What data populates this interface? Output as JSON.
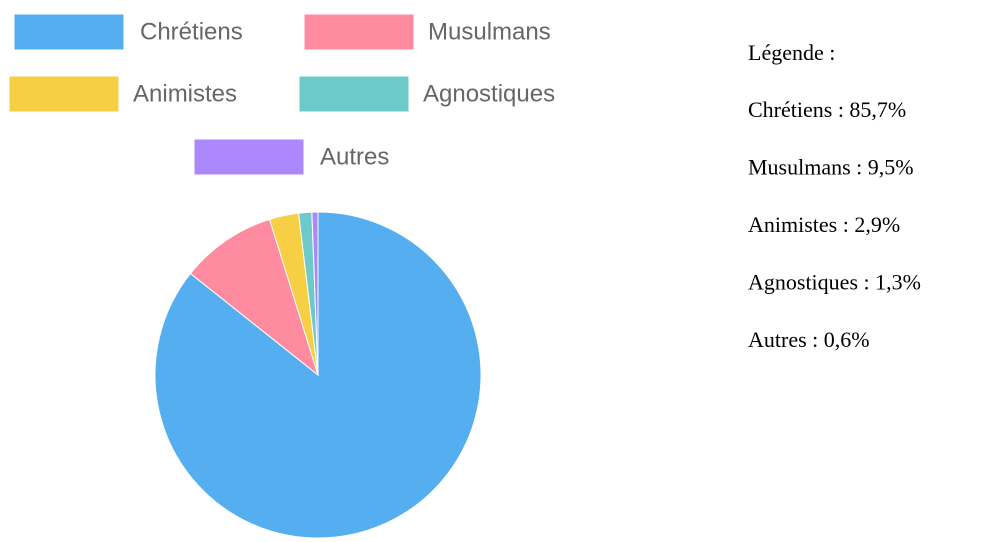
{
  "chart_data": {
    "type": "pie",
    "categories": [
      "Chrétiens",
      "Musulmans",
      "Animistes",
      "Agnostiques",
      "Autres"
    ],
    "values": [
      85.7,
      9.5,
      2.9,
      1.3,
      0.6
    ],
    "colors": [
      "#55aef0",
      "#ff8ba1",
      "#f7cf45",
      "#6ccbca",
      "#ac88fc"
    ],
    "legend_title": "Légende :",
    "value_labels": [
      "Chrétiens : 85,7%",
      "Musulmans : 9,5%",
      "Animistes : 2,9%",
      "Agnostiques : 1,3%",
      "Autres : 0,6%"
    ]
  }
}
